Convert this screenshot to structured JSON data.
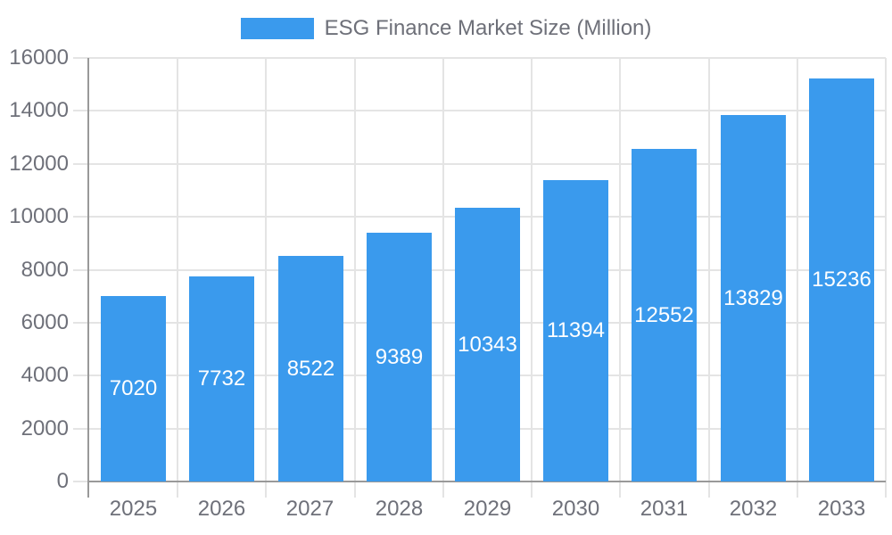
{
  "legend": {
    "label": "ESG Finance Market Size (Million)"
  },
  "colors": {
    "bar_fill": "#3A9AED",
    "bar_label_text": "#FFFFFF",
    "axis_line": "#999999",
    "grid_line": "#E4E4E4",
    "axis_text": "#6E7079",
    "background": "#FFFFFF"
  },
  "chart_data": {
    "type": "bar",
    "title": "",
    "xlabel": "",
    "ylabel": "",
    "categories": [
      "2025",
      "2026",
      "2027",
      "2028",
      "2029",
      "2030",
      "2031",
      "2032",
      "2033"
    ],
    "series": [
      {
        "name": "ESG Finance Market Size (Million)",
        "values": [
          7020,
          7732,
          8522,
          9389,
          10343,
          11394,
          12552,
          13829,
          15236
        ]
      }
    ],
    "bar_value_labels_shown": true,
    "bar_value_label_position": "inside-center",
    "ylim": [
      0,
      16000
    ],
    "y_tick_interval": 2000,
    "y_tick_labels": [
      "0",
      "2000",
      "4000",
      "6000",
      "8000",
      "10000",
      "12000",
      "14000",
      "16000"
    ],
    "grid": true,
    "legend_position": "top-center"
  }
}
